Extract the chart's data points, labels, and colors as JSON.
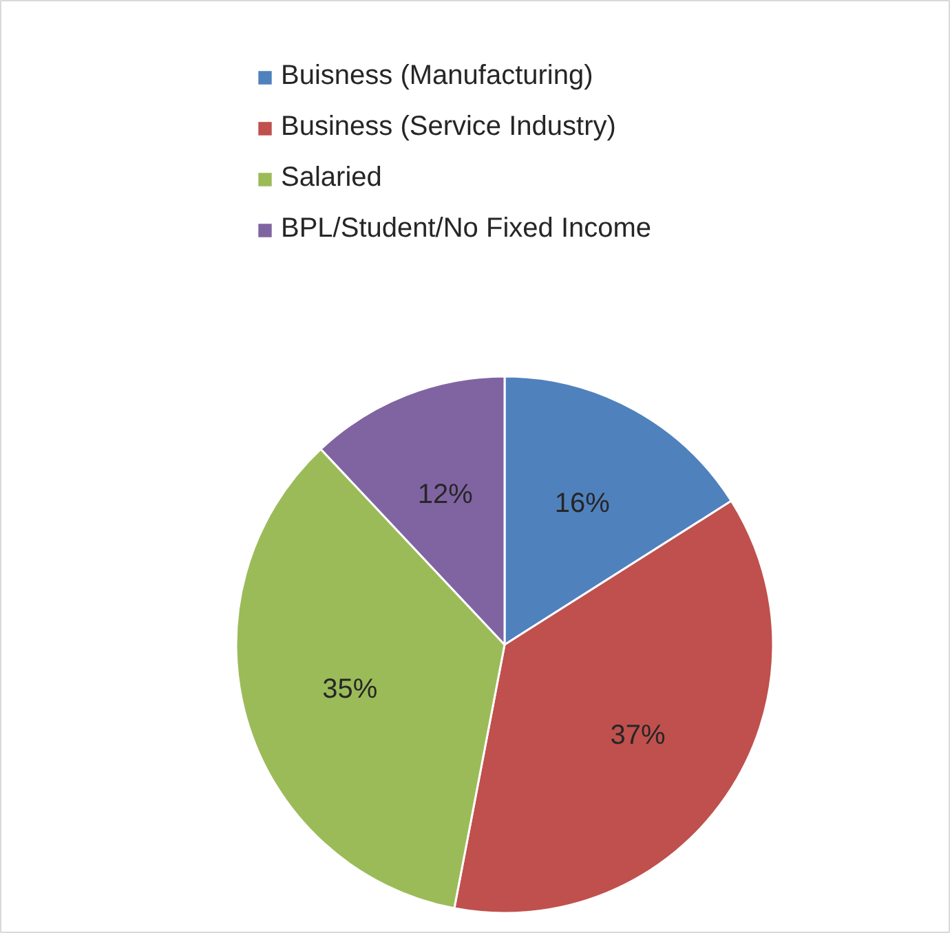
{
  "chart_data": {
    "type": "pie",
    "categories": [
      "Buisness (Manufacturing)",
      "Business (Service Industry)",
      "Salaried",
      "BPL/Student/No Fixed Income"
    ],
    "values": [
      16,
      37,
      35,
      12
    ],
    "colors": [
      "#4f81bd",
      "#c0504d",
      "#9bbb59",
      "#8064a2"
    ],
    "value_labels": [
      "16%",
      "37%",
      "35%",
      "12%"
    ],
    "legend": "top"
  }
}
